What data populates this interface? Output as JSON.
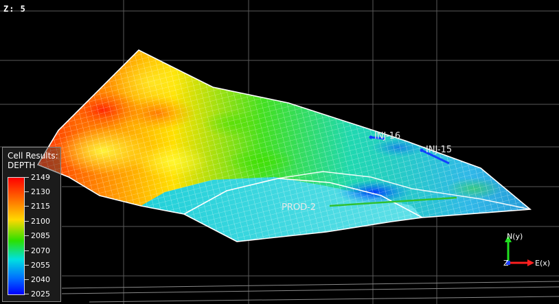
{
  "viewer": {
    "z_scale": "Z: 5"
  },
  "legend": {
    "title_line1": "Cell Results:",
    "title_line2": "DEPTH",
    "values": [
      "2149",
      "2130",
      "2115",
      "2100",
      "2085",
      "2070",
      "2055",
      "2040",
      "2025"
    ]
  },
  "wells": {
    "well_a": "INJ-16",
    "well_b": "INJ-15",
    "well_c": "PROD-2"
  },
  "axes": {
    "north": "N(y)",
    "east": "E(x)",
    "z": "Z"
  },
  "colors": {
    "background": "#000000",
    "deep": "#ff0000",
    "shallow": "#0000ff"
  }
}
